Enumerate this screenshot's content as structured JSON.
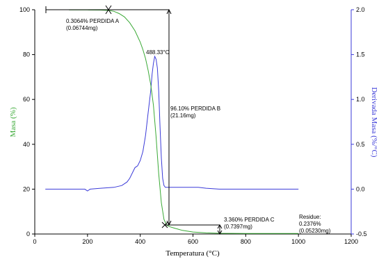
{
  "chart_data": {
    "type": "line",
    "xlabel": "Temperatura (°C)",
    "ylabel_left": "Masa (%)",
    "ylabel_right": "Derivada Masa (%/°C)",
    "xlim": [
      0,
      1200
    ],
    "ylim_left": [
      0,
      100
    ],
    "ylim_right": [
      -0.5,
      2.0
    ],
    "x_ticks": [
      "0",
      "200",
      "400",
      "600",
      "800",
      "1000",
      "1200"
    ],
    "y_left_ticks": [
      "0",
      "20",
      "40",
      "60",
      "80",
      "100"
    ],
    "y_right_ticks": [
      "-0.5",
      "0.0",
      "0.5",
      "1.0",
      "1.5",
      "2.0"
    ],
    "colors": {
      "mass": "#39a935",
      "derivative": "#3a3ad8"
    },
    "series": [
      {
        "axis": "left",
        "x": [
          130,
          200,
          250,
          280,
          300,
          320,
          340,
          360,
          380,
          400,
          410,
          420,
          430,
          440,
          450,
          460,
          470,
          480,
          490,
          500,
          510,
          530,
          560,
          600,
          650,
          700,
          800,
          900,
          1000
        ],
        "y": [
          99.9,
          99.9,
          99.85,
          99.7,
          99.3,
          98.3,
          96.8,
          94.2,
          90.6,
          85.5,
          82.2,
          78.2,
          73.0,
          66.5,
          57.5,
          43.5,
          27.0,
          14.0,
          6.5,
          4.0,
          3.3,
          2.6,
          1.6,
          0.9,
          0.5,
          0.3,
          0.25,
          0.24,
          0.24
        ]
      },
      {
        "axis": "right",
        "x": [
          40,
          100,
          150,
          190,
          200,
          210,
          250,
          300,
          330,
          350,
          360,
          370,
          380,
          390,
          400,
          410,
          420,
          430,
          440,
          445,
          450,
          455,
          460,
          465,
          470,
          475,
          480,
          485,
          490,
          495,
          500,
          520,
          560,
          600,
          620,
          650,
          700,
          800,
          900,
          1000
        ],
        "y": [
          0.0,
          0.0,
          0.0,
          0.0,
          -0.02,
          0.0,
          0.01,
          0.02,
          0.04,
          0.08,
          0.12,
          0.18,
          0.24,
          0.26,
          0.32,
          0.42,
          0.6,
          0.85,
          1.1,
          1.28,
          1.4,
          1.48,
          1.45,
          1.35,
          1.1,
          0.7,
          0.35,
          0.12,
          0.04,
          0.02,
          0.02,
          0.02,
          0.02,
          0.02,
          0.02,
          0.01,
          0.0,
          0.0,
          0.0,
          0.0
        ]
      }
    ],
    "annotations": {
      "peak": "488.33°C",
      "step_a": [
        "0.3064% PERDIDA A",
        "(0.06744mg)"
      ],
      "step_b": [
        "96.10% PERDIDA B",
        "(21.16mg)"
      ],
      "step_c": [
        "3.360% PERDIDA C",
        "(0.7397mg)"
      ],
      "residue": [
        "Residue:",
        "0.2376%",
        "(0.05230mg)"
      ]
    }
  }
}
